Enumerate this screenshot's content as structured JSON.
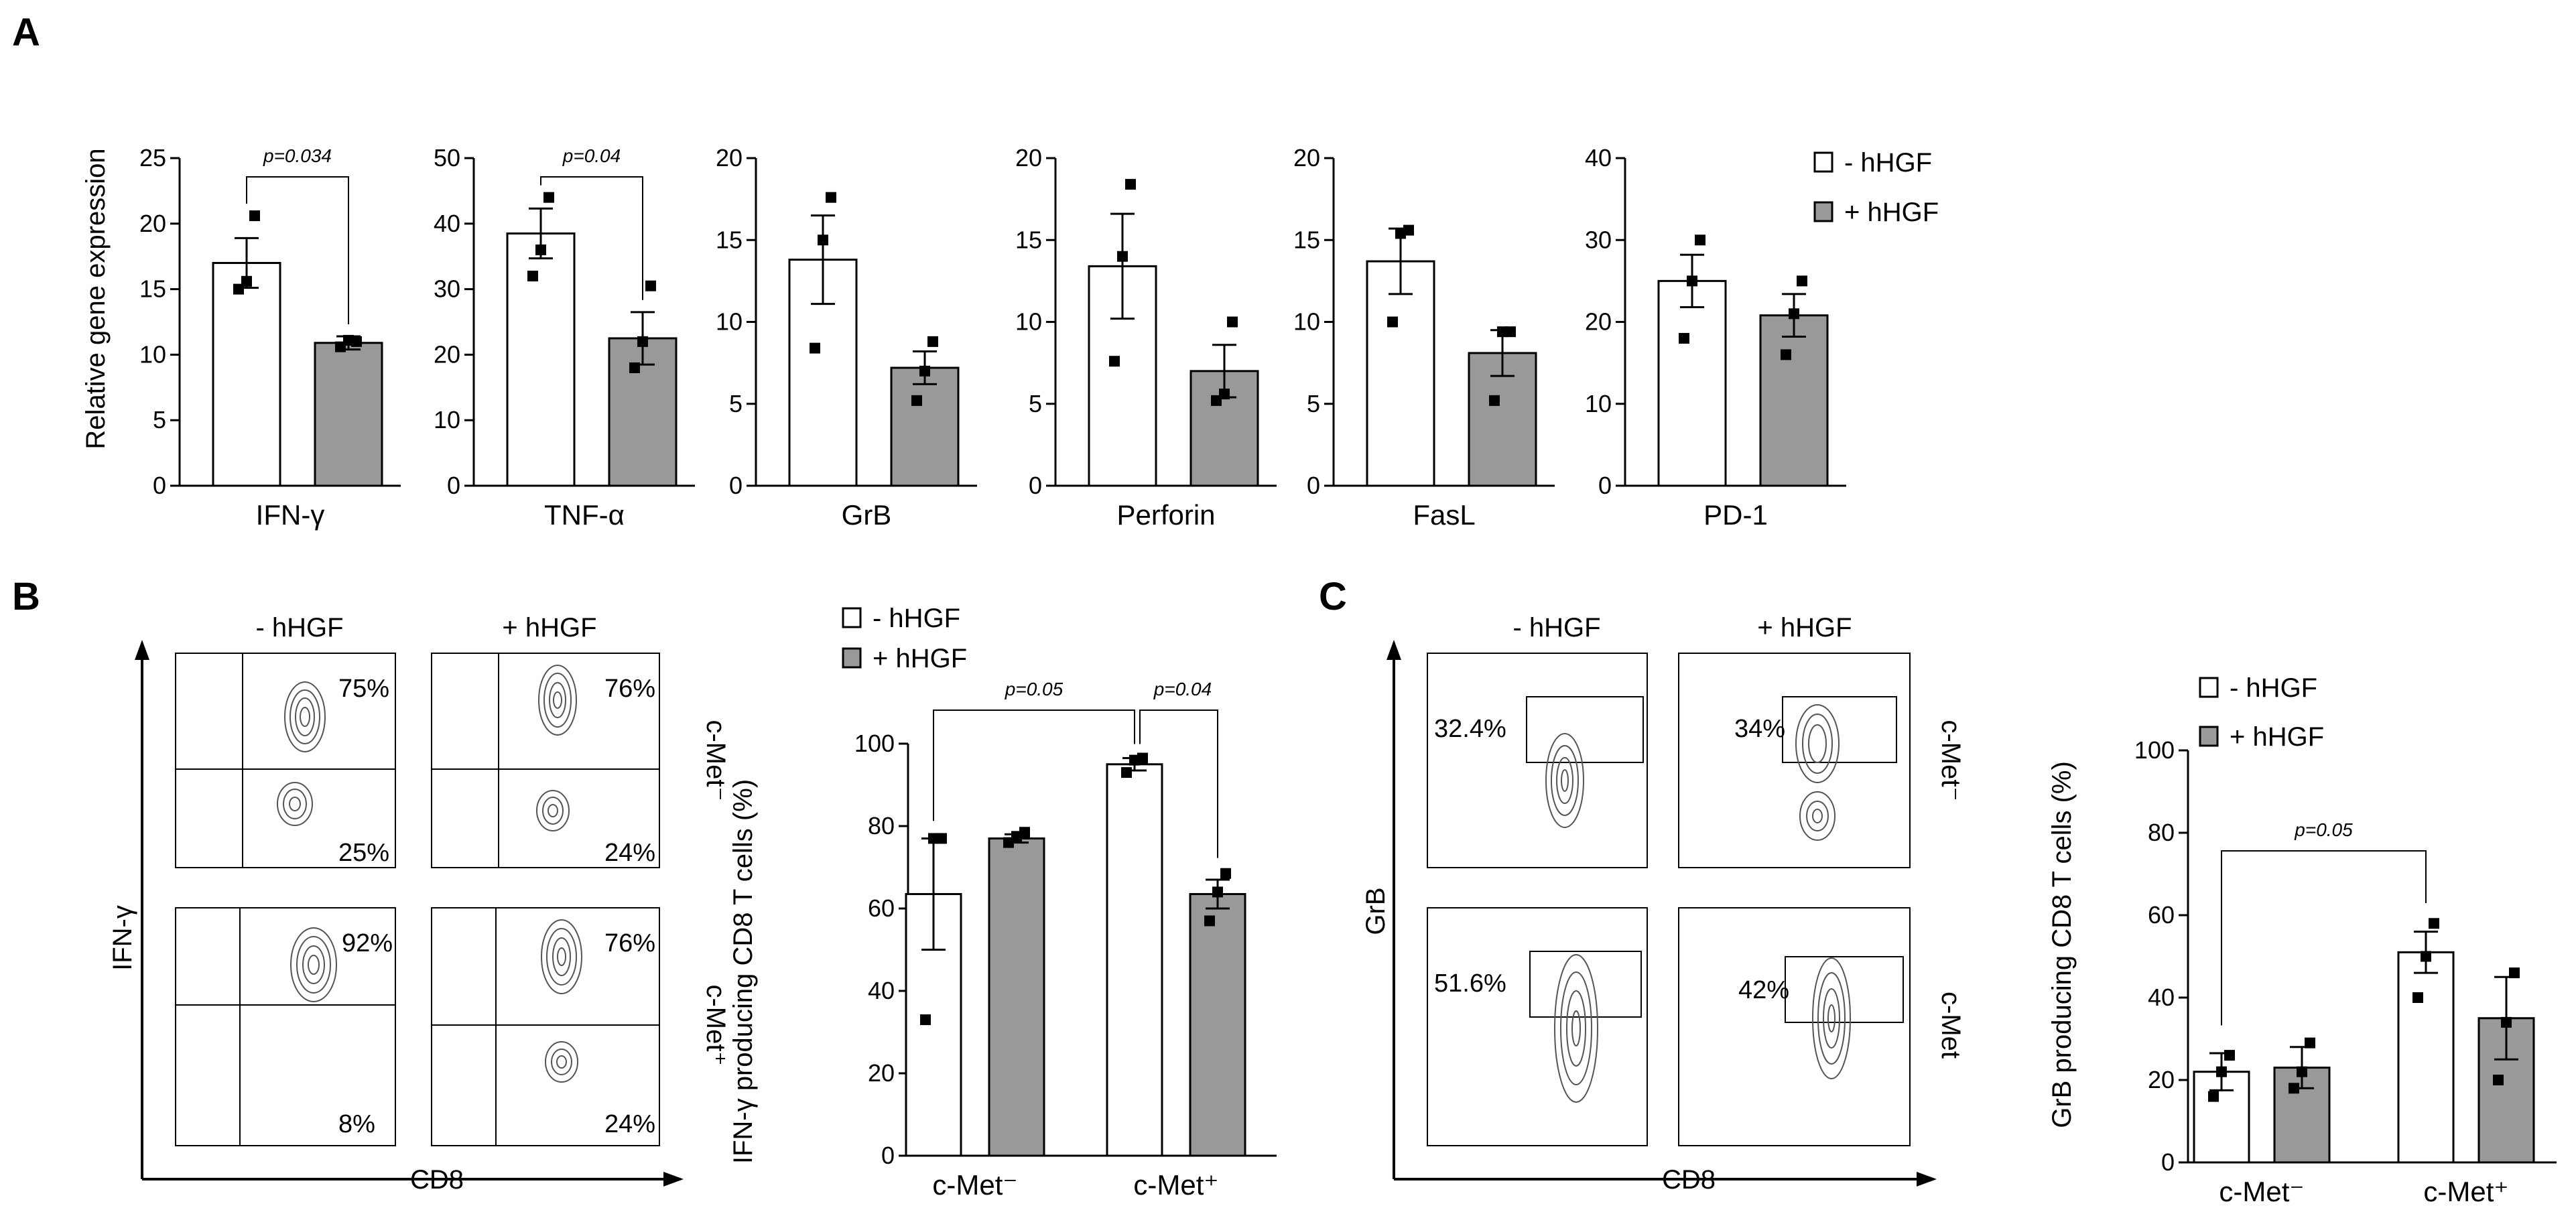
{
  "colors": {
    "neg": "#ffffff",
    "pos": "#999999",
    "ink": "#000000"
  },
  "panels": {
    "a": "A",
    "b": "B",
    "c": "C"
  },
  "panel_a": {
    "ylabel": "Relative gene expression",
    "legend": [
      "- hHGF",
      "+ hHGF"
    ]
  },
  "panel_b": {
    "col_labels": [
      "- hHGF",
      "+ hHGF"
    ],
    "row_labels": [
      "c-Met⁻",
      "c-Met⁺"
    ],
    "y_axis": "IFN-γ",
    "x_axis": "CD8",
    "percentages": [
      "75%",
      "25%",
      "76%",
      "24%",
      "92%",
      "8%",
      "76%",
      "24%"
    ],
    "legend": [
      "- hHGF",
      "+ hHGF"
    ]
  },
  "panel_c": {
    "col_labels": [
      "- hHGF",
      "+ hHGF"
    ],
    "row_labels": [
      "c-Met⁻",
      "c-Met"
    ],
    "y_axis": "GrB",
    "x_axis": "CD8",
    "percentages": [
      "32.4%",
      "34%",
      "51.6%",
      "42%"
    ],
    "legend": [
      "- hHGF",
      "+ hHGF"
    ]
  },
  "chart_data": [
    {
      "id": "a1",
      "type": "bar",
      "category": "IFN-γ",
      "series": [
        "- hHGF",
        "+ hHGF"
      ],
      "means": [
        17.0,
        10.9
      ],
      "sem": [
        1.9,
        0.5
      ],
      "points": [
        [
          15.0,
          15.6,
          20.6
        ],
        [
          10.6,
          11.1,
          11.0
        ]
      ],
      "ylim": [
        0,
        25
      ],
      "yticks": [
        0,
        5,
        10,
        15,
        20,
        25
      ],
      "pvalue": "p=0.034",
      "pair": [
        0,
        1
      ]
    },
    {
      "id": "a2",
      "type": "bar",
      "category": "TNF-α",
      "series": [
        "- hHGF",
        "+ hHGF"
      ],
      "means": [
        38.5,
        22.5
      ],
      "sem": [
        3.8,
        4.0
      ],
      "points": [
        [
          32.0,
          36.0,
          44.0
        ],
        [
          18.0,
          22.0,
          30.5
        ]
      ],
      "ylim": [
        0,
        50
      ],
      "yticks": [
        0,
        10,
        20,
        30,
        40,
        50
      ],
      "pvalue": "p=0.04",
      "pair": [
        0,
        1
      ]
    },
    {
      "id": "a3",
      "type": "bar",
      "category": "GrB",
      "series": [
        "- hHGF",
        "+ hHGF"
      ],
      "means": [
        13.8,
        7.2
      ],
      "sem": [
        2.7,
        1.0
      ],
      "points": [
        [
          8.4,
          15.0,
          17.6
        ],
        [
          5.2,
          7.0,
          8.8
        ]
      ],
      "ylim": [
        0,
        20
      ],
      "yticks": [
        0,
        5,
        10,
        15,
        20
      ]
    },
    {
      "id": "a4",
      "type": "bar",
      "category": "Perforin",
      "series": [
        "- hHGF",
        "+ hHGF"
      ],
      "means": [
        13.4,
        7.0
      ],
      "sem": [
        3.2,
        1.6
      ],
      "points": [
        [
          7.6,
          14.0,
          18.4
        ],
        [
          5.2,
          5.6,
          10.0
        ]
      ],
      "ylim": [
        0,
        20
      ],
      "yticks": [
        0,
        5,
        10,
        15,
        20
      ]
    },
    {
      "id": "a5",
      "type": "bar",
      "category": "FasL",
      "series": [
        "- hHGF",
        "+ hHGF"
      ],
      "means": [
        13.7,
        8.1
      ],
      "sem": [
        2.0,
        1.4
      ],
      "points": [
        [
          10.0,
          15.4,
          15.6
        ],
        [
          5.2,
          9.4,
          9.4
        ]
      ],
      "ylim": [
        0,
        20
      ],
      "yticks": [
        0,
        5,
        10,
        15,
        20
      ]
    },
    {
      "id": "a6",
      "type": "bar",
      "category": "PD-1",
      "series": [
        "- hHGF",
        "+ hHGF"
      ],
      "means": [
        25.0,
        20.8
      ],
      "sem": [
        3.2,
        2.6
      ],
      "points": [
        [
          18.0,
          25.0,
          30.0
        ],
        [
          16.0,
          21.0,
          25.0
        ]
      ],
      "ylim": [
        0,
        40
      ],
      "yticks": [
        0,
        10,
        20,
        30,
        40
      ]
    },
    {
      "id": "b",
      "type": "bar",
      "ylabel": "IFN-γ producing CD8 T cells (%)",
      "categories": [
        "c-Met⁻",
        "c-Met⁺"
      ],
      "series": [
        {
          "name": "- hHGF",
          "means": [
            63.5,
            95.0
          ],
          "sem": [
            13.5,
            1.5
          ],
          "points": [
            [
              33.0,
              77.0,
              77.0
            ],
            [
              93.0,
              96.0,
              96.5
            ]
          ]
        },
        {
          "name": "+ hHGF",
          "means": [
            77.0,
            63.5
          ],
          "sem": [
            1.0,
            3.5
          ],
          "points": [
            [
              76.0,
              77.5,
              78.5
            ],
            [
              57.0,
              64.0,
              68.5
            ]
          ]
        }
      ],
      "ylim": [
        0,
        100
      ],
      "yticks": [
        0,
        20,
        40,
        60,
        80,
        100
      ],
      "pvalues": [
        {
          "text": "p=0.05",
          "from": [
            0,
            0
          ],
          "to": [
            1,
            0
          ]
        },
        {
          "text": "p=0.04",
          "from": [
            1,
            0
          ],
          "to": [
            1,
            1
          ]
        }
      ]
    },
    {
      "id": "c",
      "type": "bar",
      "ylabel": "GrB producing CD8 T cells (%)",
      "categories": [
        "c-Met⁻",
        "c-Met⁺"
      ],
      "series": [
        {
          "name": "- hHGF",
          "means": [
            22.0,
            51.0
          ],
          "sem": [
            4.5,
            5.0
          ],
          "points": [
            [
              16.0,
              22.0,
              26.0
            ],
            [
              40.0,
              50.0,
              58.0
            ]
          ]
        },
        {
          "name": "+ hHGF",
          "means": [
            23.0,
            35.0
          ],
          "sem": [
            5.0,
            10.0
          ],
          "points": [
            [
              18.0,
              22.0,
              29.0
            ],
            [
              20.0,
              34.0,
              46.0
            ]
          ]
        }
      ],
      "ylim": [
        0,
        100
      ],
      "yticks": [
        0,
        20,
        40,
        60,
        80,
        100
      ],
      "pvalues": [
        {
          "text": "p=0.05",
          "from": [
            0,
            0
          ],
          "to": [
            1,
            0
          ]
        }
      ]
    }
  ]
}
